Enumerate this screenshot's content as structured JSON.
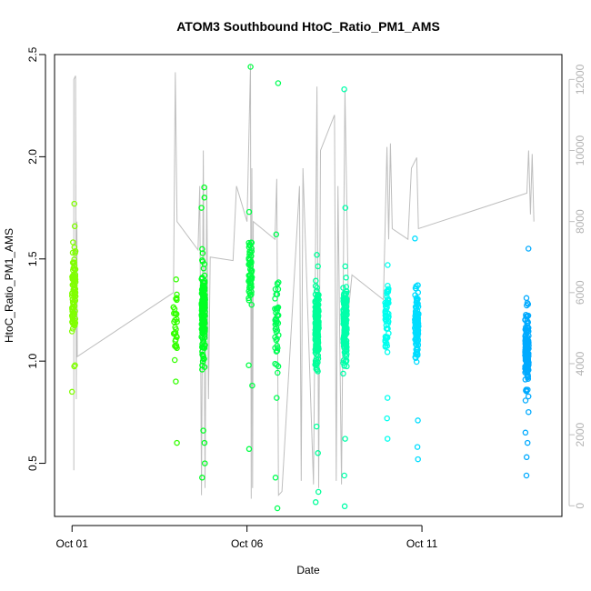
{
  "chart_data": {
    "type": "scatter",
    "title": "ATOM3 Southbound HtoC_Ratio_PM1_AMS",
    "xlabel": "Date",
    "ylabel": "HtoC_Ratio_PM1_AMS",
    "x_ticks": [
      "Oct 01",
      "Oct 06",
      "Oct 11"
    ],
    "x_tick_days": [
      1,
      6,
      11
    ],
    "x_range_days": [
      0.5,
      15.0
    ],
    "y_ticks": [
      "0.5",
      "1.0",
      "1.5",
      "2.0",
      "2.5"
    ],
    "ylim": [
      0.24,
      2.5
    ],
    "y2_ticks": [
      "0",
      "2000",
      "4000",
      "6000",
      "8000",
      "10000",
      "12000"
    ],
    "y2lim": [
      -300,
      12700
    ],
    "y2_color": "#bebebe",
    "grid": false,
    "legend": "none",
    "series": [
      {
        "day": 1.05,
        "color": "#80ff00",
        "n": 90,
        "center": 1.32,
        "spread": 0.17,
        "extra": [
          1.77,
          1.66,
          0.85,
          0.98
        ]
      },
      {
        "day": 3.95,
        "color": "#33ff00",
        "n": 30,
        "center": 1.2,
        "spread": 0.13,
        "extra": [
          0.6,
          0.9,
          1.4
        ]
      },
      {
        "day": 4.75,
        "color": "#00ff22",
        "n": 150,
        "center": 1.22,
        "spread": 0.2,
        "extra": [
          1.85,
          1.8,
          1.75,
          0.5,
          0.43,
          0.6,
          0.66
        ]
      },
      {
        "day": 6.1,
        "color": "#00ff44",
        "n": 60,
        "center": 1.45,
        "spread": 0.13,
        "extra": [
          2.44,
          1.73,
          0.57,
          0.88,
          0.98
        ]
      },
      {
        "day": 6.85,
        "color": "#00ff55",
        "n": 45,
        "center": 1.18,
        "spread": 0.19,
        "extra": [
          2.36,
          0.28,
          0.43,
          0.82,
          1.62
        ]
      },
      {
        "day": 8.0,
        "color": "#00ff99",
        "n": 170,
        "center": 1.17,
        "spread": 0.17,
        "extra": [
          0.31,
          0.36,
          0.55,
          1.52,
          0.68
        ]
      },
      {
        "day": 8.8,
        "color": "#00ffaa",
        "n": 140,
        "center": 1.18,
        "spread": 0.18,
        "extra": [
          2.33,
          1.75,
          0.29,
          0.44,
          0.62
        ]
      },
      {
        "day": 10.0,
        "color": "#00ffee",
        "n": 60,
        "center": 1.2,
        "spread": 0.17,
        "extra": [
          1.47,
          0.62,
          0.72,
          0.82
        ]
      },
      {
        "day": 10.85,
        "color": "#00ddff",
        "n": 110,
        "center": 1.18,
        "spread": 0.16,
        "extra": [
          1.6,
          0.52,
          0.58,
          0.71
        ]
      },
      {
        "day": 14.0,
        "color": "#00aaff",
        "n": 150,
        "center": 1.07,
        "spread": 0.19,
        "extra": [
          1.55,
          0.44,
          0.53,
          0.6,
          0.65
        ]
      }
    ],
    "secondary_line": {
      "color": "#bebebe",
      "points": [
        [
          1.05,
          1000
        ],
        [
          1.05,
          12000
        ],
        [
          1.1,
          12100
        ],
        [
          1.12,
          3000
        ],
        [
          1.14,
          8000
        ],
        [
          1.15,
          4200
        ],
        [
          3.9,
          6000
        ],
        [
          3.95,
          12200
        ],
        [
          4.0,
          8000
        ],
        [
          4.6,
          7200
        ],
        [
          4.65,
          9000
        ],
        [
          4.7,
          300
        ],
        [
          4.75,
          10000
        ],
        [
          4.8,
          500
        ],
        [
          4.85,
          9000
        ],
        [
          4.9,
          3000
        ],
        [
          4.95,
          7000
        ],
        [
          5.6,
          6900
        ],
        [
          5.7,
          9000
        ],
        [
          6.0,
          8000
        ],
        [
          6.1,
          12400
        ],
        [
          6.12,
          200
        ],
        [
          6.14,
          9500
        ],
        [
          6.16,
          500
        ],
        [
          6.18,
          8000
        ],
        [
          6.8,
          7500
        ],
        [
          6.85,
          9200
        ],
        [
          6.9,
          300
        ],
        [
          7.0,
          400
        ],
        [
          7.5,
          9000
        ],
        [
          7.55,
          700
        ],
        [
          7.6,
          9500
        ],
        [
          7.9,
          600
        ],
        [
          8.0,
          11800
        ],
        [
          8.05,
          500
        ],
        [
          8.1,
          10000
        ],
        [
          8.5,
          11000
        ],
        [
          8.55,
          700
        ],
        [
          8.6,
          9000
        ],
        [
          8.7,
          600
        ],
        [
          8.8,
          11700
        ],
        [
          8.9,
          5500
        ],
        [
          9.0,
          6500
        ],
        [
          9.9,
          5800
        ],
        [
          10.0,
          10100
        ],
        [
          10.05,
          7500
        ],
        [
          10.1,
          10200
        ],
        [
          10.15,
          7800
        ],
        [
          10.6,
          7500
        ],
        [
          10.7,
          9500
        ],
        [
          10.85,
          9800
        ],
        [
          10.9,
          7800
        ],
        [
          14.0,
          8800
        ],
        [
          14.05,
          10000
        ],
        [
          14.1,
          8200
        ],
        [
          14.15,
          9900
        ],
        [
          14.2,
          8000
        ]
      ]
    }
  }
}
